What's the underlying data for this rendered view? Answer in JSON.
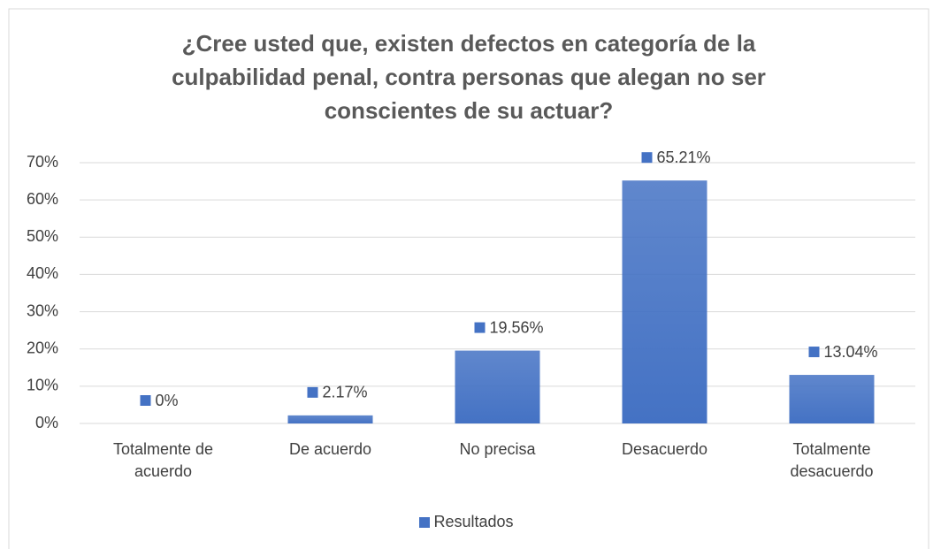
{
  "chart_data": {
    "type": "bar",
    "title": "¿Cree usted que, existen defectos en categoría de la culpabilidad penal, contra personas que alegan no ser conscientes de su actuar?",
    "categories": [
      "Totalmente de acuerdo",
      "De acuerdo",
      "No precisa",
      "Desacuerdo",
      "Totalmente desacuerdo"
    ],
    "series": [
      {
        "name": "Resultados",
        "color": "#4472c4",
        "values": [
          0,
          2.17,
          19.56,
          65.21,
          13.04
        ],
        "value_labels": [
          "0%",
          "2.17%",
          "19.56%",
          "65.21%",
          "13.04%"
        ]
      }
    ],
    "ylim": [
      0,
      70
    ],
    "yticks": [
      {
        "value": 0,
        "label": "0%"
      },
      {
        "value": 10,
        "label": "10%"
      },
      {
        "value": 20,
        "label": "20%"
      },
      {
        "value": 30,
        "label": "30%"
      },
      {
        "value": 40,
        "label": "40%"
      },
      {
        "value": 50,
        "label": "50%"
      },
      {
        "value": 60,
        "label": "60%"
      },
      {
        "value": 70,
        "label": "70%"
      }
    ],
    "grid": true,
    "legend": "bottom"
  }
}
